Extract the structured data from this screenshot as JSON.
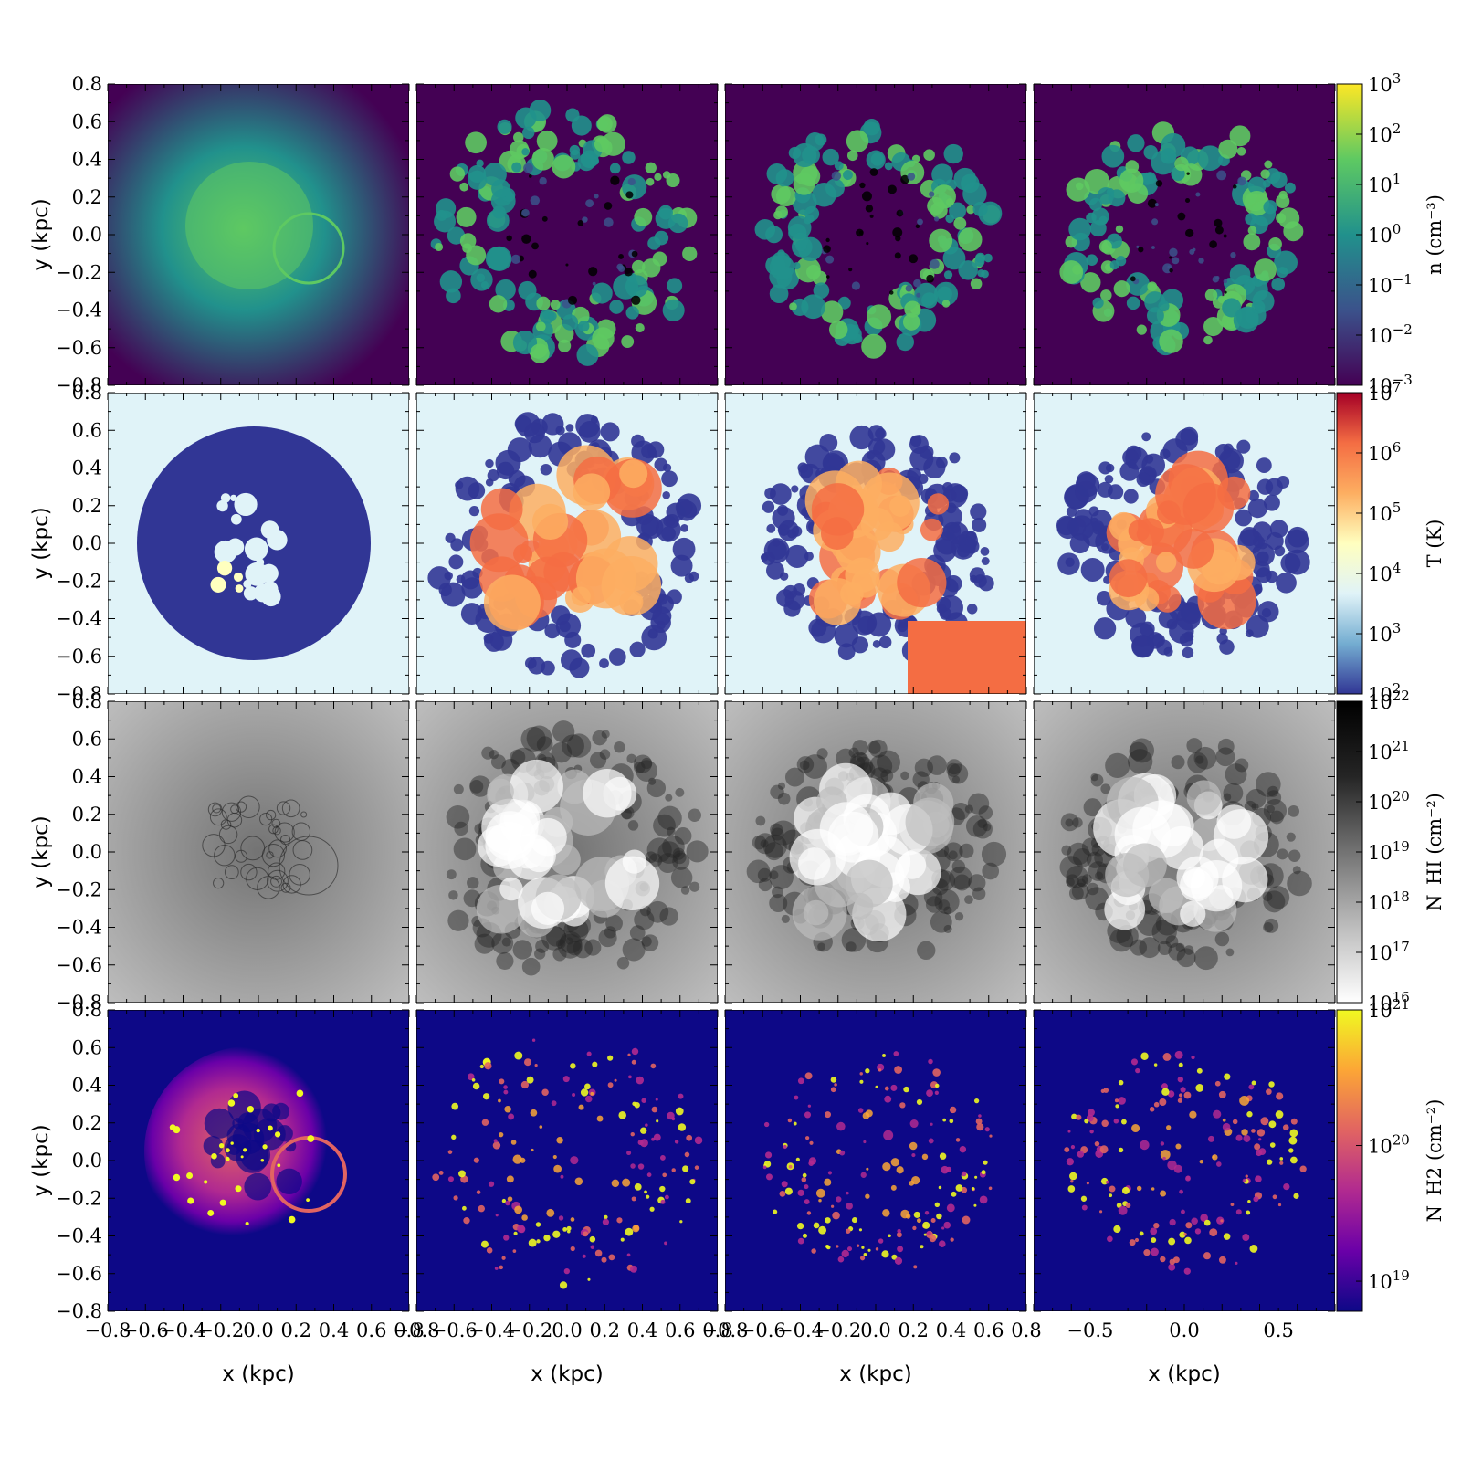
{
  "chart_data": {
    "type": "heatmap",
    "layout": "4x4 grid of projection maps (rows = quantity, columns = snapshot)",
    "x_axis": {
      "label": "x  (kpc)",
      "range": [
        -0.8,
        0.8
      ],
      "tick_values_cols_1_3": [
        -0.8,
        -0.6,
        -0.4,
        -0.2,
        0.0,
        0.2,
        0.4,
        0.6,
        0.8
      ],
      "tick_labels_cols_1_3": [
        "−0.8",
        "−0.6",
        "−0.4",
        "−0.2",
        "0.0",
        "0.2",
        "0.4",
        "0.6",
        "0.8"
      ],
      "tick_values_col_4": [
        -0.5,
        0.0,
        0.5
      ],
      "tick_labels_col_4": [
        "−0.5",
        "0.0",
        "0.5"
      ]
    },
    "y_axis": {
      "label": "y  (kpc)",
      "range": [
        -0.8,
        0.8
      ],
      "tick_values": [
        0.8,
        0.6,
        0.4,
        0.2,
        0.0,
        -0.2,
        -0.4,
        -0.6,
        -0.8
      ],
      "tick_labels": [
        "0.8",
        "0.6",
        "0.4",
        "0.2",
        "0.0",
        "−0.2",
        "−0.4",
        "−0.6",
        "−0.8"
      ]
    },
    "rows": [
      {
        "quantity": "density",
        "colormap": "viridis",
        "colorbar_label": "n (cm⁻³)",
        "scale": "log",
        "range": [
          0.001,
          1000
        ],
        "colorbar_ticks": [
          {
            "value": 1000,
            "base": "10",
            "exp": "3"
          },
          {
            "value": 100,
            "base": "10",
            "exp": "2"
          },
          {
            "value": 10,
            "base": "10",
            "exp": "1"
          },
          {
            "value": 1,
            "base": "10",
            "exp": "0"
          },
          {
            "value": 0.1,
            "base": "10",
            "exp": "−1"
          },
          {
            "value": 0.01,
            "base": "10",
            "exp": "−2"
          },
          {
            "value": 0.001,
            "base": "10",
            "exp": "−3"
          }
        ]
      },
      {
        "quantity": "temperature",
        "colormap": "RdYlBu_r",
        "colorbar_label": "T (K)",
        "scale": "log",
        "range": [
          100,
          10000000
        ],
        "colorbar_ticks": [
          {
            "value": 10000000,
            "base": "10",
            "exp": "7"
          },
          {
            "value": 1000000,
            "base": "10",
            "exp": "6"
          },
          {
            "value": 100000,
            "base": "10",
            "exp": "5"
          },
          {
            "value": 10000,
            "base": "10",
            "exp": "4"
          },
          {
            "value": 1000,
            "base": "10",
            "exp": "3"
          },
          {
            "value": 100,
            "base": "10",
            "exp": "2"
          }
        ]
      },
      {
        "quantity": "HI column density",
        "colormap": "Greys",
        "colorbar_label": "N_HI (cm⁻²)",
        "scale": "log",
        "range": [
          1e+16,
          1e+22
        ],
        "colorbar_ticks": [
          {
            "value": 1e+22,
            "base": "10",
            "exp": "22"
          },
          {
            "value": 1e+21,
            "base": "10",
            "exp": "21"
          },
          {
            "value": 1e+20,
            "base": "10",
            "exp": "20"
          },
          {
            "value": 1e+19,
            "base": "10",
            "exp": "19"
          },
          {
            "value": 1e+18,
            "base": "10",
            "exp": "18"
          },
          {
            "value": 1e+17,
            "base": "10",
            "exp": "17"
          },
          {
            "value": 1e+16,
            "base": "10",
            "exp": "16"
          }
        ]
      },
      {
        "quantity": "H2 column density",
        "colormap": "plasma",
        "colorbar_label": "N_H2 (cm⁻²)",
        "scale": "log",
        "range": [
          6e+18,
          1e+21
        ],
        "colorbar_ticks": [
          {
            "value": 1e+21,
            "base": "10",
            "exp": "21"
          },
          {
            "value": 1e+20,
            "base": "10",
            "exp": "20"
          },
          {
            "value": 1e+19,
            "base": "10",
            "exp": "19"
          }
        ]
      }
    ],
    "colors": {
      "viridis": [
        "#440154",
        "#3b528b",
        "#21918c",
        "#5ec962",
        "#fde725"
      ],
      "temperature": [
        "#313695",
        "#74add1",
        "#e0f3f8",
        "#ffffbf",
        "#fdae61",
        "#f46d43",
        "#a50026"
      ],
      "greys": [
        "#ffffff",
        "#bdbdbd",
        "#737373",
        "#252525",
        "#000000"
      ],
      "plasma": [
        "#0d0887",
        "#6a00a8",
        "#b12a90",
        "#e16462",
        "#fca636",
        "#f0f921"
      ]
    }
  }
}
